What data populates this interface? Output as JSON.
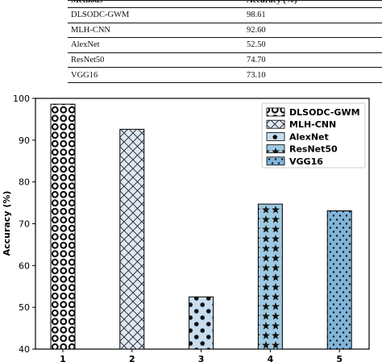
{
  "table": {
    "headers": [
      "Methods",
      "Accuracy (%)"
    ],
    "rows": [
      [
        "DLSODC-GWM",
        "98.61"
      ],
      [
        "MLH-CNN",
        "92.60"
      ],
      [
        "AlexNet",
        "52.50"
      ],
      [
        "ResNet50",
        "74.70"
      ],
      [
        "VGG16",
        "73.10"
      ]
    ]
  },
  "chart_data": {
    "type": "bar",
    "categories": [
      "1",
      "2",
      "3",
      "4",
      "5"
    ],
    "values": [
      98.61,
      92.6,
      52.5,
      74.7,
      73.1
    ],
    "legend": [
      "DLSODC-GWM",
      "MLH-CNN",
      "AlexNet",
      "ResNet50",
      "VGG16"
    ],
    "legend_position": "top-right",
    "xlabel": "",
    "ylabel": "Accuracy (%)",
    "ylim": [
      40,
      100
    ],
    "yticks": [
      40,
      50,
      60,
      70,
      80,
      90,
      100
    ],
    "grid": false,
    "bar_colors": [
      "#ffffff",
      "#dfe8f3",
      "#c7dcef",
      "#9ec9e2",
      "#7fb4d9"
    ],
    "bar_patterns": [
      "rings",
      "crosshatch",
      "dots",
      "stars",
      "small-dots"
    ]
  }
}
